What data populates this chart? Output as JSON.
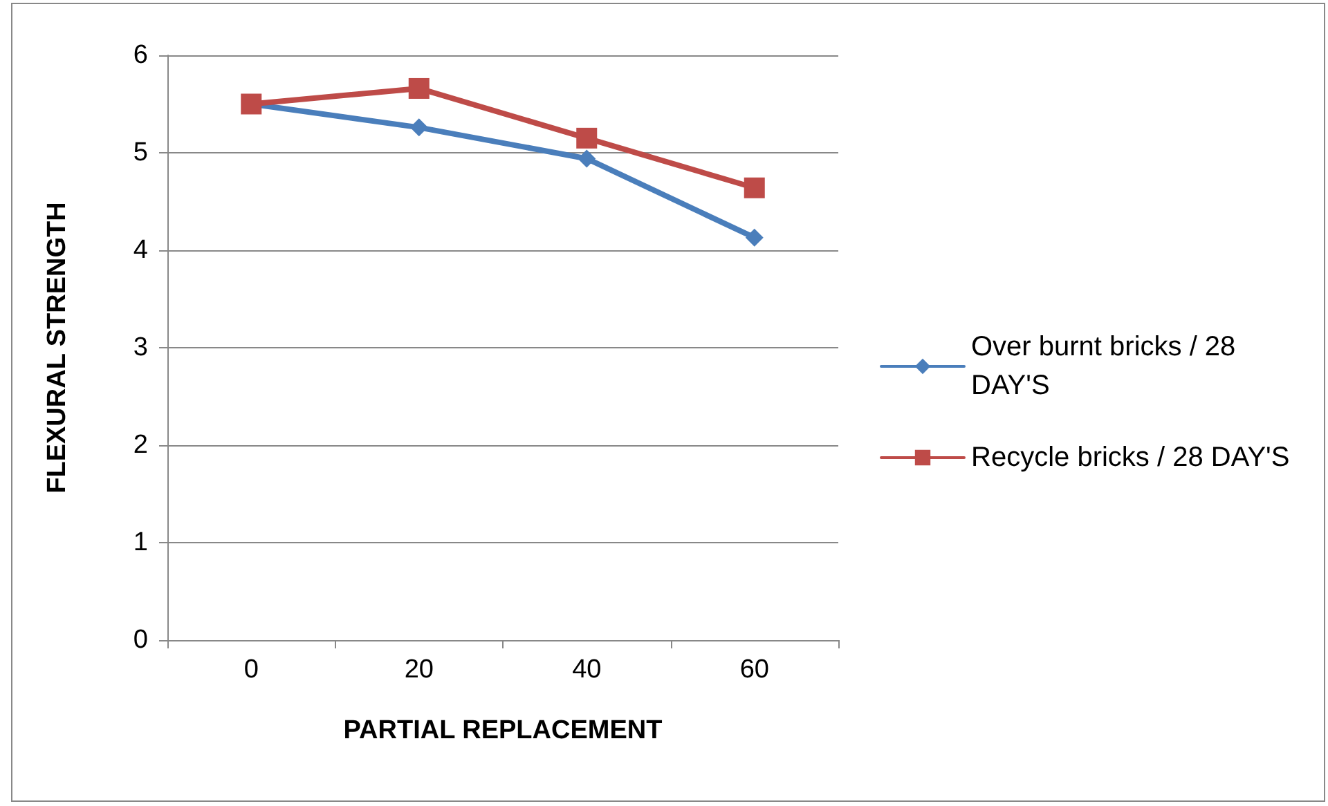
{
  "chart_data": {
    "type": "line",
    "xlabel": "PARTIAL REPLACEMENT",
    "ylabel": "FLEXURAL STRENGTH",
    "categories": [
      "0",
      "20",
      "40",
      "60"
    ],
    "series": [
      {
        "name": "Over burnt bricks / 28 DAY'S",
        "color": "#4a7ebb",
        "marker": "diamond",
        "values": [
          5.5,
          5.26,
          4.94,
          4.13
        ]
      },
      {
        "name": "Recycle bricks / 28 DAY'S",
        "color": "#be4b48",
        "marker": "square",
        "values": [
          5.5,
          5.66,
          5.15,
          4.64
        ]
      }
    ],
    "ylim": [
      0,
      6
    ],
    "yticks": [
      0,
      1,
      2,
      3,
      4,
      5,
      6
    ],
    "grid": "y",
    "legend": "right"
  }
}
